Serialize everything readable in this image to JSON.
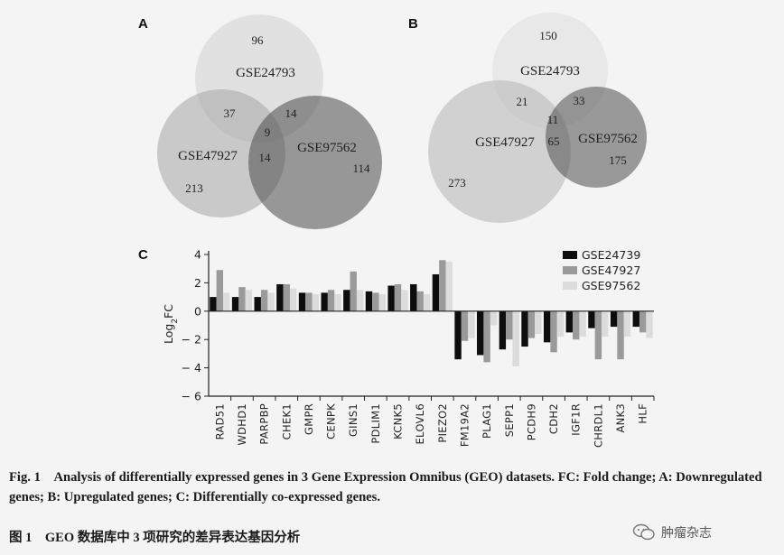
{
  "chart_data": [
    {
      "type": "venn",
      "panel": "A",
      "sets": [
        "GSE24793",
        "GSE47927",
        "GSE97562"
      ],
      "regions": {
        "GSE24793_only": "96",
        "GSE47927_only": "213",
        "GSE97562_only": "114",
        "GSE24793_GSE47927": "37",
        "GSE24793_GSE97562": "14",
        "GSE47927_GSE97562": "14",
        "all_three": "9"
      }
    },
    {
      "type": "venn",
      "panel": "B",
      "sets": [
        "GSE24793",
        "GSE47927",
        "GSE97562"
      ],
      "regions": {
        "GSE24793_only": "150",
        "GSE47927_only": "273",
        "GSE97562_only": "175",
        "GSE24793_GSE47927": "21",
        "GSE24793_GSE97562": "33",
        "GSE47927_GSE97562": "65",
        "all_three": "11"
      }
    },
    {
      "type": "bar",
      "panel": "C",
      "ylabel": "Log",
      "ylabel_sub": "2",
      "ylabel_suffix": "FC",
      "ylim": [
        -6,
        4
      ],
      "yticks": [
        4,
        2,
        0,
        -2,
        -4,
        -6
      ],
      "ytick_labels": [
        "4",
        "2",
        "0",
        "− 2",
        "− 4",
        "− 6"
      ],
      "categories": [
        "RAD51",
        "WDHD1",
        "PARPBP",
        "CHEK1",
        "GMPR",
        "CENPK",
        "GINS1",
        "PDLIM1",
        "KCNK5",
        "ELOVL6",
        "PIEZO2",
        "FM19A2",
        "PLAG1",
        "SEPP1",
        "PCDH9",
        "CDH2",
        "IGF1R",
        "CHRDL1",
        "ANK3",
        "HLF"
      ],
      "series": [
        {
          "name": "GSE24739",
          "color": "#0d0d0d",
          "values": [
            1.0,
            1.0,
            1.0,
            1.9,
            1.3,
            1.3,
            1.5,
            1.4,
            1.8,
            1.9,
            2.6,
            -3.4,
            -3.1,
            -2.7,
            -2.5,
            -2.2,
            -1.5,
            -1.2,
            -1.1,
            -1.1
          ]
        },
        {
          "name": "GSE47927",
          "color": "#9a9a9a",
          "values": [
            2.9,
            1.7,
            1.5,
            1.9,
            1.3,
            1.5,
            2.8,
            1.3,
            1.9,
            1.4,
            3.6,
            -2.1,
            -3.6,
            -2.0,
            -1.9,
            -2.9,
            -2.0,
            -3.4,
            -3.4,
            -1.5
          ]
        },
        {
          "name": "GSE97562",
          "color": "#dcdcdc",
          "values": [
            1.3,
            1.5,
            1.3,
            1.6,
            1.2,
            1.2,
            1.5,
            1.2,
            1.5,
            1.2,
            3.5,
            -1.9,
            -1.0,
            -3.9,
            -1.6,
            -1.8,
            -1.8,
            -1.8,
            -1.8,
            -1.9
          ]
        }
      ]
    }
  ],
  "caption": {
    "fig_label": "Fig. 1",
    "text": "Analysis of differentially expressed genes in 3 Gene Expression Omnibus (GEO) datasets. FC: Fold change; A: Downregulated genes; B: Upregulated genes; C: Differentially co-expressed genes.",
    "cn_label": "图 1",
    "cn_text": "GEO 数据库中 3 项研究的差异表达基因分析"
  },
  "watermark": {
    "text": "肿瘤杂志",
    "icon": "wechat-icon"
  }
}
